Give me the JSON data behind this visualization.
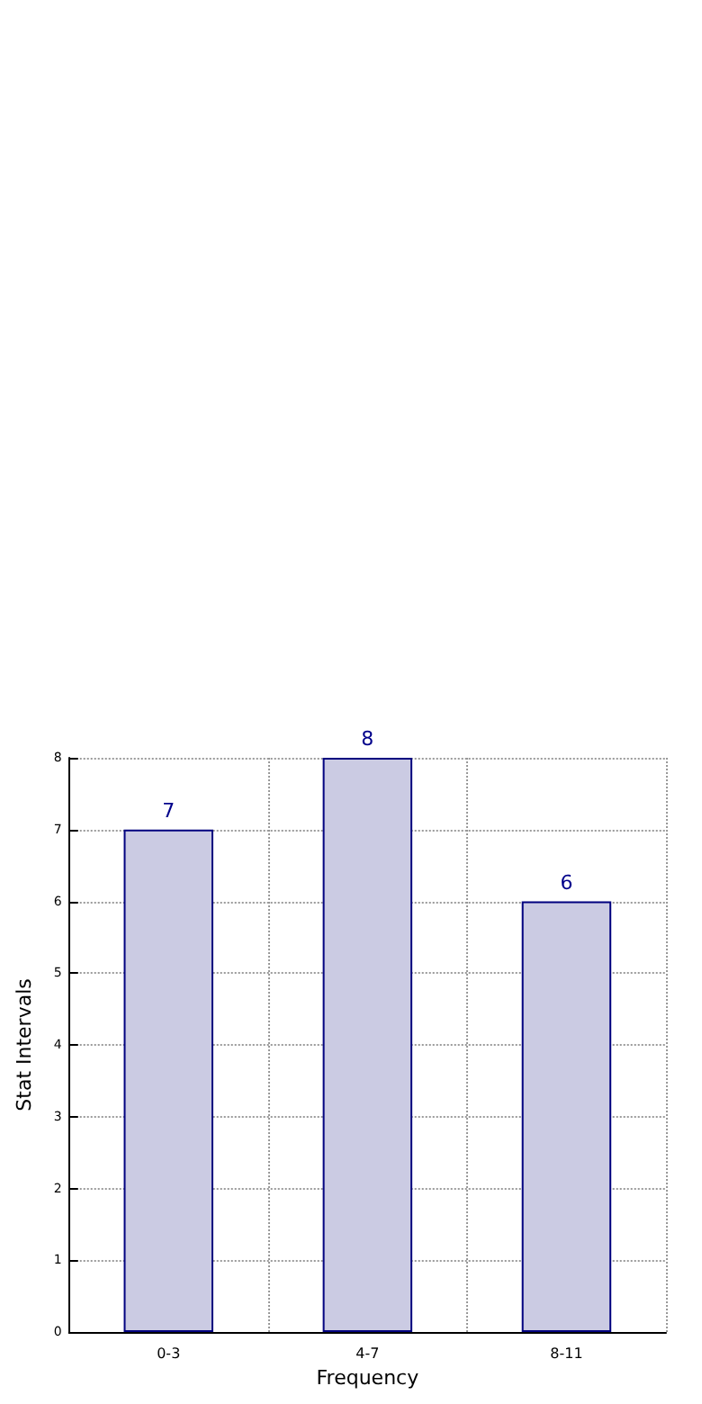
{
  "chart_data": {
    "type": "bar",
    "xlabel": "Frequency",
    "ylabel": "Stat Intervals",
    "categories": [
      "0-3",
      "4-7",
      "8-11"
    ],
    "values": [
      7,
      8,
      6
    ],
    "color": "#cbcbe3",
    "ylim": [
      0,
      8
    ],
    "yticks": [
      0,
      1,
      2,
      3,
      4,
      5,
      6,
      7,
      8
    ],
    "grid": true,
    "data_labels": true
  }
}
